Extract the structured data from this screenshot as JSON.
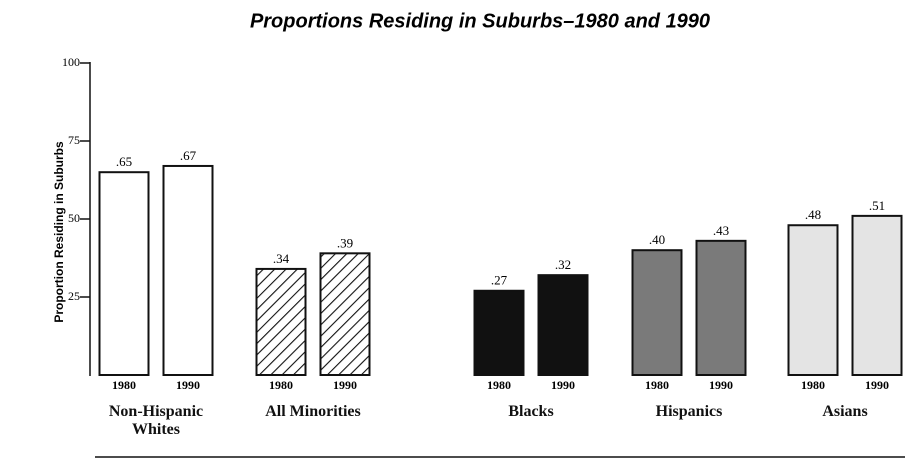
{
  "chart_data": {
    "type": "bar",
    "title": "Proportions Residing in Suburbs–1980 and 1990",
    "y_label": "Proportion Residing in Suburbs",
    "categories": [
      "Non-Hispanic Whites",
      "All Minorities",
      "Blacks",
      "Hispanics",
      "Asians"
    ],
    "colors": [
      "#ffffff",
      "hatch",
      "#111111",
      "#7a7a7a",
      "#e4e4e4"
    ],
    "series": [
      {
        "name": "1980",
        "values": [
          65,
          34,
          27,
          40,
          48
        ],
        "value_labels": [
          ".65",
          ".34",
          ".27",
          ".40",
          ".48"
        ]
      },
      {
        "name": "1990",
        "values": [
          67,
          39,
          32,
          43,
          51
        ],
        "value_labels": [
          ".67",
          ".39",
          ".32",
          ".43",
          ".51"
        ]
      }
    ],
    "ylim": [
      0,
      100
    ],
    "yticks": [
      25,
      50,
      75,
      100
    ]
  }
}
